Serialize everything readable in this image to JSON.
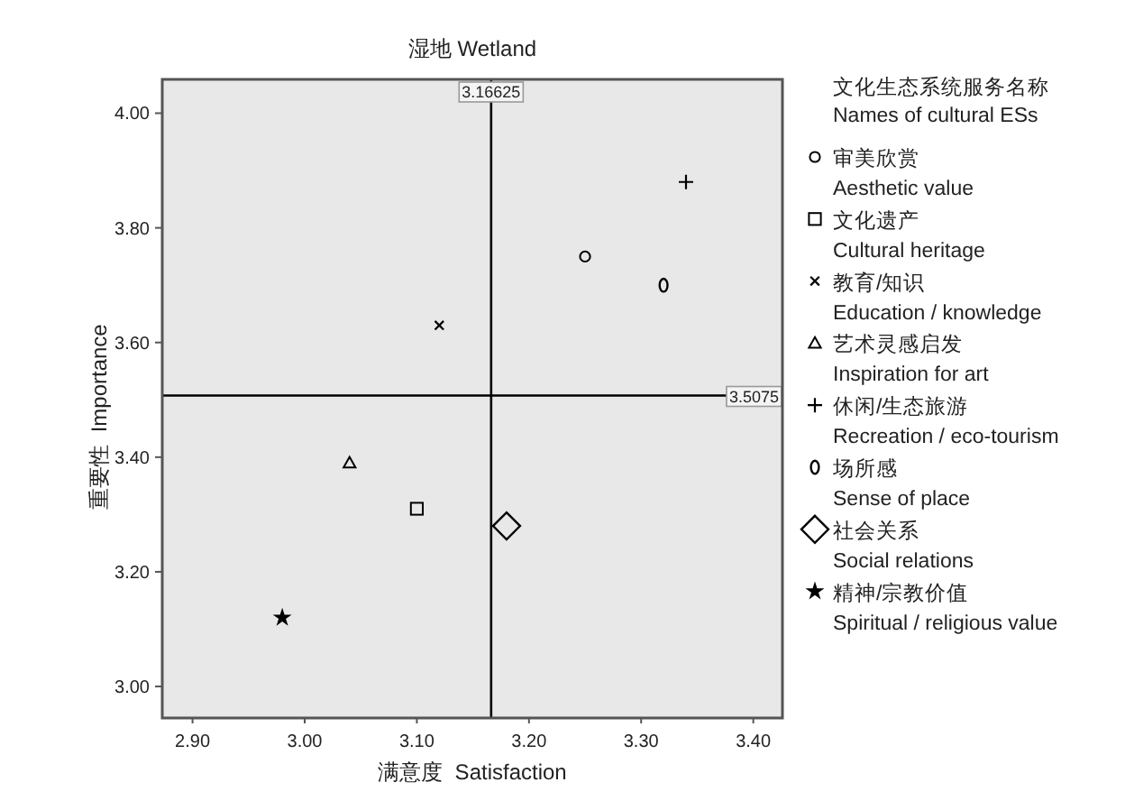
{
  "chart_data": {
    "type": "scatter",
    "title": "湿地 Wetland",
    "xlabel": "满意度  Satisfaction",
    "ylabel": "重要性  Importance",
    "legend_title": "文化生态系统服务名称\nNames of cultural ESs",
    "legend": "right",
    "grid": false,
    "xlim": [
      2.873,
      3.426
    ],
    "ylim": [
      2.945,
      4.059
    ],
    "xticks": [
      {
        "value": 2.9,
        "label": "2.90"
      },
      {
        "value": 3.0,
        "label": "3.00"
      },
      {
        "value": 3.1,
        "label": "3.10"
      },
      {
        "value": 3.2,
        "label": "3.20"
      },
      {
        "value": 3.3,
        "label": "3.30"
      },
      {
        "value": 3.4,
        "label": "3.40"
      }
    ],
    "yticks": [
      {
        "value": 3.0,
        "label": "3.00"
      },
      {
        "value": 3.2,
        "label": "3.20"
      },
      {
        "value": 3.4,
        "label": "3.40"
      },
      {
        "value": 3.6,
        "label": "3.60"
      },
      {
        "value": 3.8,
        "label": "3.80"
      },
      {
        "value": 4.0,
        "label": "4.00"
      }
    ],
    "ref_lines": [
      {
        "axis": "x",
        "value": 3.16625,
        "label": "3.16625",
        "color": "#000000"
      },
      {
        "axis": "y",
        "value": 3.5075,
        "label": "3.5075",
        "color": "#000000"
      }
    ],
    "series": [
      {
        "name": "审美欣赏\nAesthetic value",
        "color": "#000000",
        "marker": "circle",
        "x": [
          3.25
        ],
        "values": [
          3.75
        ]
      },
      {
        "name": "文化遗产\nCultural heritage",
        "color": "#000000",
        "marker": "square",
        "x": [
          3.1
        ],
        "values": [
          3.31
        ]
      },
      {
        "name": "教育/知识\nEducation / knowledge",
        "color": "#000000",
        "marker": "cross",
        "x": [
          3.12
        ],
        "values": [
          3.63
        ]
      },
      {
        "name": "艺术灵感启发\nInspiration for art",
        "color": "#000000",
        "marker": "triangle",
        "x": [
          3.04
        ],
        "values": [
          3.39
        ]
      },
      {
        "name": "休闲/生态旅游\nRecreation / eco-tourism",
        "color": "#000000",
        "marker": "plus",
        "x": [
          3.34
        ],
        "values": [
          3.88
        ]
      },
      {
        "name": "场所感\nSense of place",
        "color": "#000000",
        "x": [
          3.32
        ],
        "values": [
          3.7
        ]
      },
      {
        "name": "社会关系\nSocial relations",
        "color": "#000000",
        "marker": "diamond",
        "x": [
          3.18
        ],
        "values": [
          3.28
        ]
      },
      {
        "name": "精神/宗教价值\nSpiritual / religious value",
        "color": "#000000",
        "marker": "star",
        "x": [
          2.98
        ],
        "values": [
          3.12
        ]
      }
    ]
  }
}
